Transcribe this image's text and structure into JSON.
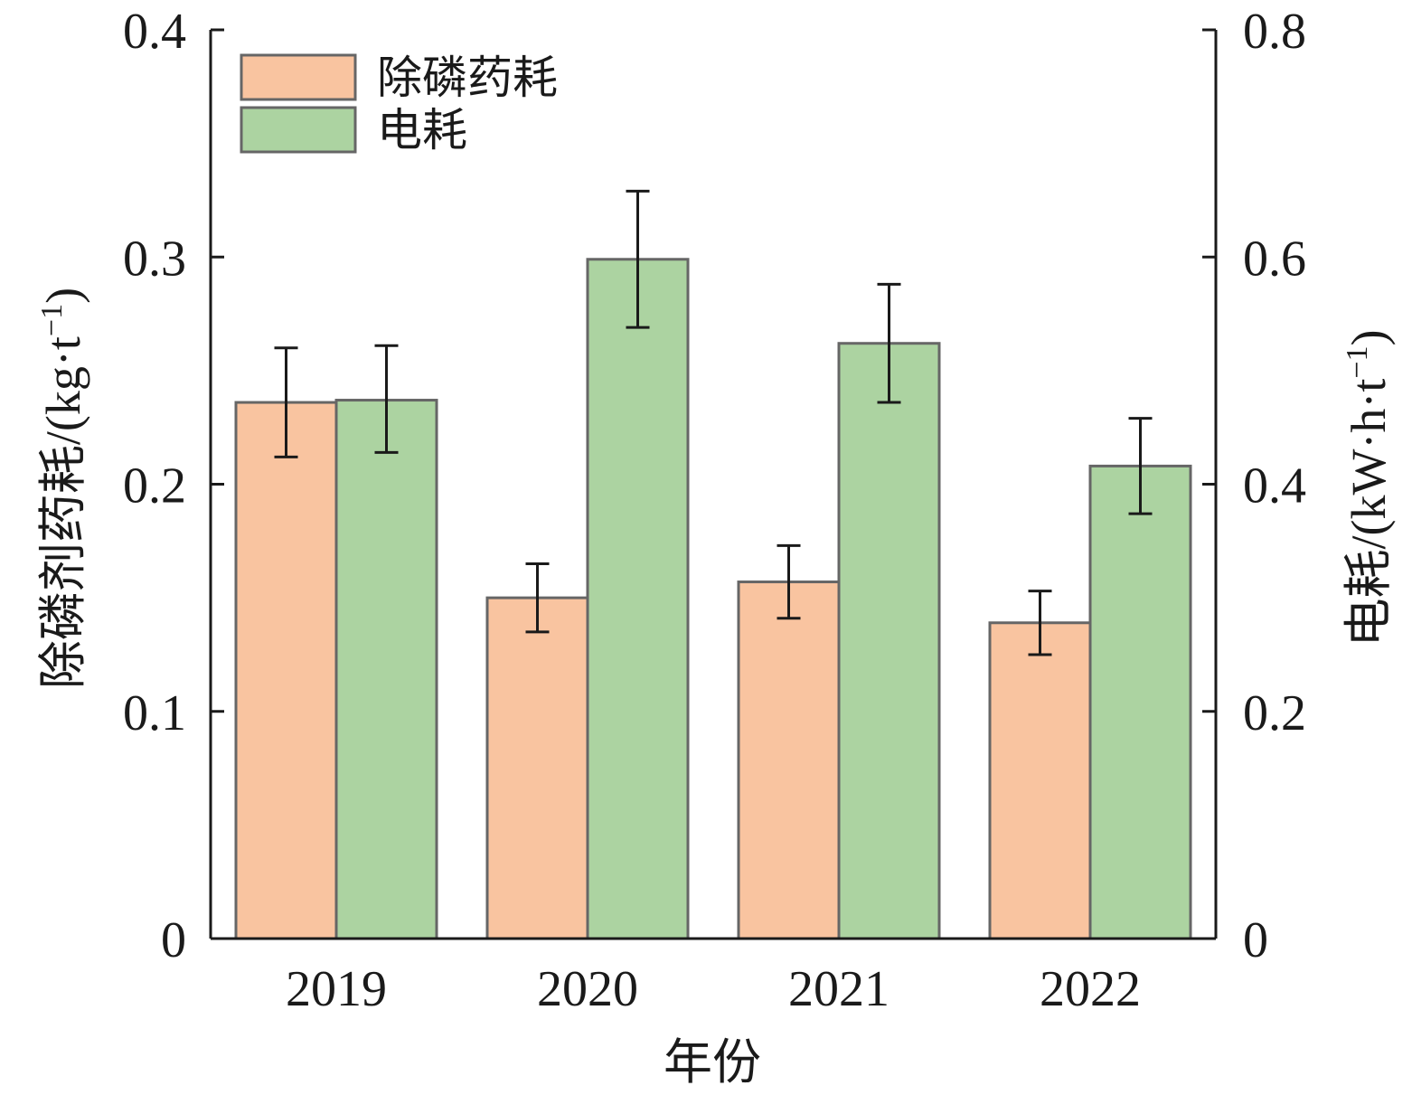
{
  "chart_data": {
    "type": "bar",
    "title": "",
    "xlabel": "年份",
    "ylabel_left": "除磷剂药耗/(kg·t",
    "ylabel_left_sup": "−1",
    "ylabel_left_close": ")",
    "ylabel_right": "电耗/(kW·h·t",
    "ylabel_right_sup": "−1",
    "ylabel_right_close": ")",
    "categories": [
      "2019",
      "2020",
      "2021",
      "2022"
    ],
    "ylim_left": [
      0,
      0.4
    ],
    "ylim_right": [
      0,
      0.8
    ],
    "yticks_left": [
      "0",
      "0.1",
      "0.2",
      "0.3",
      "0.4"
    ],
    "yticks_right": [
      "0",
      "0.2",
      "0.4",
      "0.6",
      "0.8"
    ],
    "yticks_left_values": [
      0,
      0.1,
      0.2,
      0.3,
      0.4
    ],
    "yticks_right_values": [
      0,
      0.2,
      0.4,
      0.6,
      0.8
    ],
    "series": [
      {
        "name": "除磷药耗",
        "axis": "left",
        "color": "#f9c4a0",
        "values": [
          0.236,
          0.15,
          0.157,
          0.139
        ],
        "error_low": [
          0.212,
          0.135,
          0.141,
          0.125
        ],
        "error_high": [
          0.26,
          0.165,
          0.173,
          0.153
        ]
      },
      {
        "name": "电耗",
        "axis": "right",
        "color": "#acd3a1",
        "values": [
          0.474,
          0.598,
          0.524,
          0.416
        ],
        "error_low": [
          0.428,
          0.538,
          0.472,
          0.374
        ],
        "error_high": [
          0.522,
          0.658,
          0.576,
          0.458
        ]
      }
    ],
    "legend_position": "top-left",
    "grid": false
  }
}
